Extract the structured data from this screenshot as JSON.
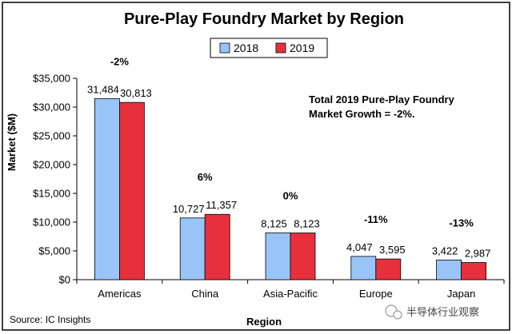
{
  "chart_data": {
    "type": "bar",
    "title": "Pure-Play Foundry Market by Region",
    "xlabel": "Region",
    "ylabel": "Market ($M)",
    "categories": [
      "Americas",
      "China",
      "Asia-Pacific",
      "Europe",
      "Japan"
    ],
    "series": [
      {
        "name": "2018",
        "values": [
          31484,
          10727,
          8125,
          4047,
          3422
        ],
        "color": "#99c4f7"
      },
      {
        "name": "2019",
        "values": [
          30813,
          11357,
          8123,
          3595,
          2987
        ],
        "color": "#e8303c"
      }
    ],
    "data_labels": {
      "2018": [
        "31,484",
        "10,727",
        "8,125",
        "4,047",
        "3,422"
      ],
      "2019": [
        "30,813",
        "11,357",
        "8,123",
        "3,595",
        "2,987"
      ]
    },
    "growth_labels": [
      "-2%",
      "6%",
      "0%",
      "-11%",
      "-13%"
    ],
    "ylim": [
      0,
      35000
    ],
    "yticks": [
      0,
      5000,
      10000,
      15000,
      20000,
      25000,
      30000,
      35000
    ],
    "ytick_labels": [
      "$0",
      "$5,000",
      "$10,000",
      "$15,000",
      "$20,000",
      "$25,000",
      "$30,000",
      "$35,000"
    ],
    "annotation_lines": [
      "Total 2019 Pure-Play Foundry",
      "Market Growth = -2%."
    ],
    "source": "Source: IC Insights",
    "legend_position": "top-center",
    "grid": false
  },
  "watermark": {
    "text": "半导体行业观察",
    "icon": "wechat-icon"
  },
  "colors": {
    "frame": "#000000",
    "axis": "#000000",
    "background": "#ffffff"
  }
}
